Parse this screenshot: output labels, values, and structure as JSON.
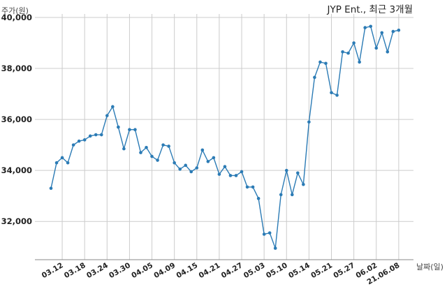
{
  "chart_data": {
    "type": "line",
    "title": "JYP Ent., 최근 3개월",
    "xlabel": "날짜(일)",
    "ylabel": "주가(원)",
    "ylim": [
      30500,
      40000
    ],
    "yticks": [
      32000,
      34000,
      36000,
      38000,
      40000
    ],
    "ytick_labels": [
      "32,000",
      "34,000",
      "36,000",
      "38,000",
      "40,000"
    ],
    "xtick_labels": [
      "03.12",
      "03.18",
      "03.24",
      "03.30",
      "04.05",
      "04.09",
      "04.15",
      "04.21",
      "04.27",
      "05.03",
      "05.10",
      "05.14",
      "05.21",
      "05.27",
      "06.02",
      "21.06.08"
    ],
    "xtick_index": [
      2,
      6,
      10,
      14,
      18,
      22,
      26,
      30,
      34,
      38,
      42,
      46,
      50,
      54,
      58,
      62
    ],
    "grid": true,
    "color": "#2b7bb5",
    "series": [
      {
        "values": [
          33300,
          34300,
          34500,
          34300,
          35000,
          35150,
          35200,
          35350,
          35400,
          35400,
          36150,
          36500,
          35700,
          34850,
          35600,
          35600,
          34700,
          34900,
          34550,
          34400,
          35000,
          34950,
          34300,
          34050,
          34200,
          33950,
          34100,
          34800,
          34350,
          34500,
          33850,
          34150,
          33800,
          33800,
          33950,
          33350,
          33350,
          32900,
          31500,
          31550,
          30950,
          33050,
          34000,
          33050,
          33900,
          33450,
          35900,
          37650,
          38250,
          38200,
          37050,
          36950,
          38650,
          38600,
          39000,
          38250,
          39600,
          39650,
          38800,
          39400,
          38650,
          39450,
          39500
        ]
      }
    ]
  }
}
